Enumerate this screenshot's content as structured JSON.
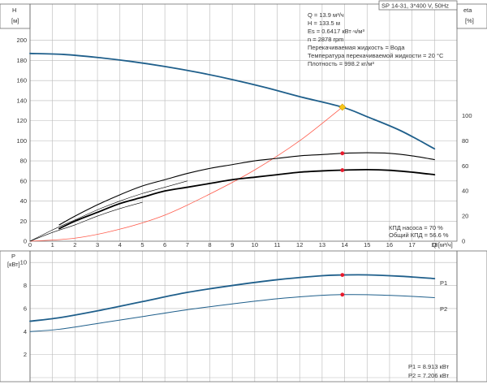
{
  "colors": {
    "head_curve": "#1f5f8b",
    "power_curve": "#1f5f8b",
    "efficiency_curve": "#000000",
    "system_curve": "#ff5a4a",
    "marker_red": "#e8192c",
    "marker_duty": "#f5c518",
    "grid": "#b9b9b9"
  },
  "header": {
    "pump_label": "SP 14-31, 3*400 V, 50Hz"
  },
  "top_chart": {
    "y_label_line1": "H",
    "y_label_line2": "[м]",
    "right_label_line1": "eta",
    "right_label_line2": "[%]",
    "x_label": "Q [м³/ч]",
    "info_lines": [
      "Q = 13.9 м³/ч",
      "H = 133.5 м",
      "Es = 0.6417 кВт·ч/м³",
      "n = 2878 rpm",
      "Перекачиваемая жидкость = Вода",
      "Температура перекачиваемой жидкости = 20 °C",
      "Плотность = 998.2 кг/м³"
    ],
    "efficiency_lines": [
      "КПД насоса = 70 %",
      "Общий КПД = 56.6 %"
    ]
  },
  "bottom_chart": {
    "y_label_line1": "P",
    "y_label_line2": "[кВт]",
    "series_p1_label": "P1",
    "series_p2_label": "P2",
    "power_lines": [
      "P1 = 8.913 кВт",
      "P2 = 7.206 кВт"
    ]
  },
  "chart_data": [
    {
      "type": "line",
      "xlim": [
        0,
        19
      ],
      "ylim": [
        0,
        220
      ],
      "x_ticks": [
        0,
        1,
        2,
        3,
        4,
        5,
        6,
        7,
        8,
        9,
        10,
        11,
        12,
        13,
        14,
        15,
        16,
        17,
        18
      ],
      "y_ticks": [
        0,
        20,
        40,
        60,
        80,
        100,
        120,
        140,
        160,
        180,
        200
      ],
      "y2lim": [
        0,
        176
      ],
      "y2_ticks": [
        0,
        20,
        40,
        60,
        80,
        100
      ],
      "grid": true,
      "series": [
        {
          "key": "head",
          "axis": "left",
          "x": [
            0,
            1.5,
            3,
            4.5,
            6,
            7.5,
            9,
            10.5,
            12,
            13.9,
            15,
            16.5,
            18
          ],
          "y": [
            187,
            186,
            183,
            179,
            174,
            168,
            161,
            153,
            144,
            133.5,
            124,
            110,
            92
          ]
        },
        {
          "key": "system",
          "axis": "left",
          "x": [
            0,
            2,
            4,
            6,
            8,
            10,
            12,
            13.9
          ],
          "y": [
            0,
            3,
            12,
            26,
            47,
            71,
            100,
            133.5
          ]
        },
        {
          "key": "efficiency_pump",
          "axis": "right",
          "x": [
            1.3,
            2,
            3,
            4,
            5,
            6,
            7,
            8,
            9,
            10,
            11,
            12,
            13,
            13.9,
            15,
            16,
            17,
            18
          ],
          "y": [
            13,
            20,
            29,
            37,
            44,
            49,
            54,
            58,
            61,
            64,
            66,
            68,
            69,
            70,
            70.5,
            70,
            68,
            65
          ]
        },
        {
          "key": "efficiency_total",
          "axis": "right",
          "x": [
            1.3,
            2,
            3,
            4,
            5,
            6,
            7,
            8,
            9,
            10,
            11,
            12,
            13,
            13.9,
            15,
            16,
            17,
            18
          ],
          "y": [
            10,
            16,
            23,
            30,
            35,
            40,
            43,
            46,
            49,
            51,
            53,
            55,
            56,
            56.6,
            57,
            56.5,
            55,
            53
          ]
        },
        {
          "key": "efficiency_pump_thin",
          "axis": "right",
          "x": [
            0,
            1,
            2,
            3,
            4,
            5,
            6,
            7
          ],
          "y": [
            0,
            9,
            17,
            25,
            32,
            38,
            43,
            48
          ]
        },
        {
          "key": "efficiency_total_thin",
          "axis": "right",
          "x": [
            0,
            1,
            2,
            3,
            4,
            5
          ],
          "y": [
            0,
            7,
            13,
            20,
            26,
            31
          ]
        }
      ],
      "points": [
        {
          "key": "duty",
          "axis": "left",
          "x": 13.9,
          "y": 133.5
        },
        {
          "key": "eta_pump_point",
          "axis": "right",
          "x": 13.9,
          "y": 70
        },
        {
          "key": "eta_total_point",
          "axis": "right",
          "x": 13.9,
          "y": 56.6
        }
      ]
    },
    {
      "type": "line",
      "xlim": [
        0,
        19
      ],
      "ylim": [
        0,
        11
      ],
      "y_ticks": [
        0,
        2,
        4,
        6,
        8,
        10
      ],
      "grid": true,
      "series": [
        {
          "key": "P1",
          "x": [
            0,
            1.3,
            3,
            5,
            7,
            9,
            11,
            13,
            13.9,
            15,
            16.5,
            18
          ],
          "y": [
            4.9,
            5.2,
            5.8,
            6.6,
            7.4,
            8.0,
            8.5,
            8.85,
            8.913,
            8.92,
            8.8,
            8.6
          ]
        },
        {
          "key": "P2",
          "x": [
            0,
            1.3,
            3,
            5,
            7,
            9,
            11,
            13,
            13.9,
            15,
            16.5,
            18
          ],
          "y": [
            4.0,
            4.2,
            4.7,
            5.3,
            5.9,
            6.4,
            6.85,
            7.15,
            7.206,
            7.2,
            7.1,
            6.95
          ]
        }
      ],
      "points": [
        {
          "key": "P1_point",
          "x": 13.9,
          "y": 8.913
        },
        {
          "key": "P2_point",
          "x": 13.9,
          "y": 7.206
        }
      ]
    }
  ]
}
